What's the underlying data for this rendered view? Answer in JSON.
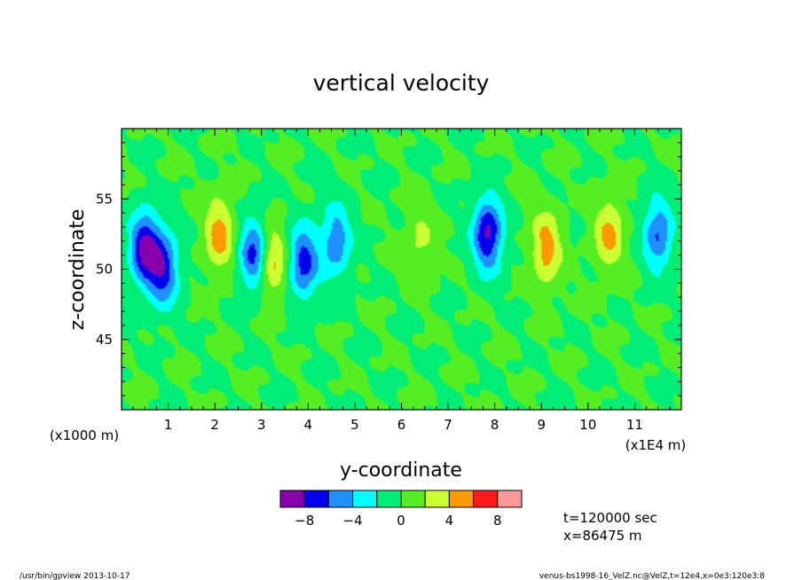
{
  "chart_data": {
    "type": "heatmap",
    "title": "vertical velocity",
    "xlabel": "y-coordinate",
    "ylabel": "z-coordinate",
    "x_unit_label": "(x1E4 m)",
    "y_unit_label": "(x1000 m)",
    "xlim": [
      0,
      12
    ],
    "ylim": [
      40,
      60
    ],
    "x_ticks": [
      "1",
      "2",
      "3",
      "4",
      "5",
      "6",
      "7",
      "8",
      "9",
      "10",
      "11"
    ],
    "y_ticks": [
      "45",
      "50",
      "55"
    ],
    "colorbar": {
      "levels": [
        -10,
        -8,
        -6,
        -4,
        -2,
        0,
        2,
        4,
        6,
        8,
        10
      ],
      "tick_labels": [
        "-8",
        "-4",
        "0",
        "4",
        "8"
      ],
      "colors": [
        "#8800aa",
        "#0000ee",
        "#1e90ff",
        "#00ffff",
        "#00ee77",
        "#55ee22",
        "#ccff33",
        "#ff9900",
        "#ff1a1a",
        "#ff9999"
      ]
    },
    "features": [
      {
        "y": 0.5,
        "z": 51.5,
        "value": -8.5
      },
      {
        "y": 0.9,
        "z": 50.0,
        "value": -7.0
      },
      {
        "y": 2.1,
        "z": 52.5,
        "value": 5.0
      },
      {
        "y": 2.85,
        "z": 51.0,
        "value": -7.5
      },
      {
        "y": 3.2,
        "z": 50.5,
        "value": 5.5
      },
      {
        "y": 3.9,
        "z": 50.5,
        "value": -7.0
      },
      {
        "y": 4.6,
        "z": 52.0,
        "value": -5.5
      },
      {
        "y": 6.4,
        "z": 52.0,
        "value": 2.5
      },
      {
        "y": 7.85,
        "z": 52.5,
        "value": -8.5
      },
      {
        "y": 9.1,
        "z": 51.5,
        "value": 5.0
      },
      {
        "y": 10.45,
        "z": 52.5,
        "value": 4.5
      },
      {
        "y": 11.5,
        "z": 52.5,
        "value": -6.0
      }
    ]
  },
  "annotations": {
    "time": "t=120000 sec",
    "position": "x=86475 m"
  },
  "footer": {
    "left": "/usr/bin/gpview  2013-10-17",
    "right": "venus-bs1998-16_VelZ.nc@VelZ,t=12e4,x=0e3:120e3:8"
  }
}
